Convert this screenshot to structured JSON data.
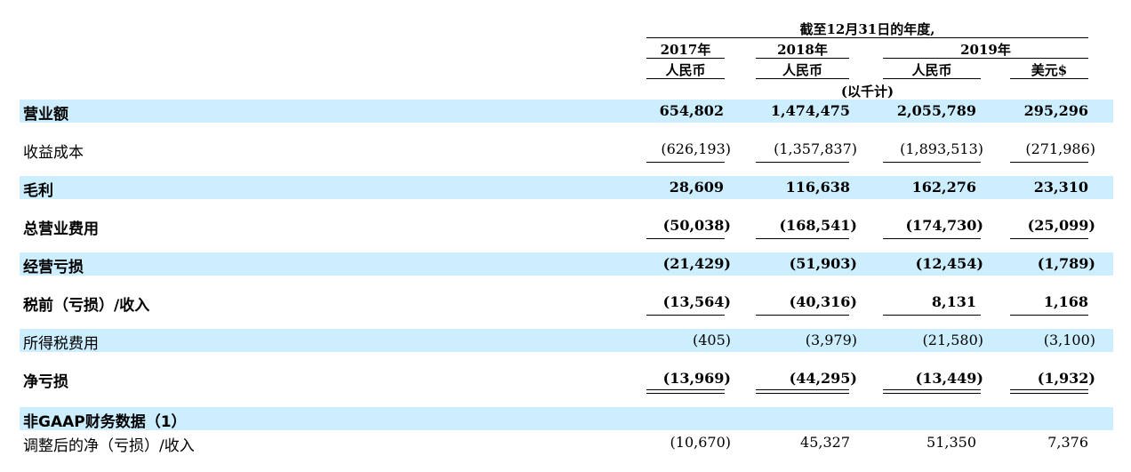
{
  "header": {
    "period": "截至12月31日的年度,",
    "years": [
      "2017年",
      "2018年",
      "2019年"
    ],
    "currencies": [
      "人民币",
      "人民币",
      "人民币",
      "美元$"
    ],
    "unit": "(以千计)"
  },
  "rows": [
    {
      "label": "营业额",
      "values": [
        "654,802",
        "1,474,475",
        "2,055,789",
        "295,296"
      ]
    },
    {
      "label": "收益成本",
      "values": [
        "(626,193)",
        "(1,357,837)",
        "(1,893,513)",
        "(271,986)"
      ]
    },
    {
      "label": "毛利",
      "values": [
        "28,609",
        "116,638",
        "162,276",
        "23,310"
      ]
    },
    {
      "label": "总营业费用",
      "values": [
        "(50,038)",
        "(168,541)",
        "(174,730)",
        "(25,099)"
      ]
    },
    {
      "label": "经营亏损",
      "values": [
        "(21,429)",
        "(51,903)",
        "(12,454)",
        "(1,789)"
      ]
    },
    {
      "label": "税前（亏损）/收入",
      "values": [
        "(13,564)",
        "(40,316)",
        "8,131",
        "1,168"
      ]
    },
    {
      "label": "所得税费用",
      "values": [
        "(405)",
        "(3,979)",
        "(21,580)",
        "(3,100)"
      ]
    },
    {
      "label": "净亏损",
      "values": [
        "(13,969)",
        "(44,295)",
        "(13,449)",
        "(1,932)"
      ]
    },
    {
      "label": "非GAAP财务数据（1）",
      "values": []
    },
    {
      "label": "调整后的净（亏损）/收入",
      "values": [
        "(10,670)",
        "45,327",
        "51,350",
        "7,376"
      ]
    }
  ]
}
